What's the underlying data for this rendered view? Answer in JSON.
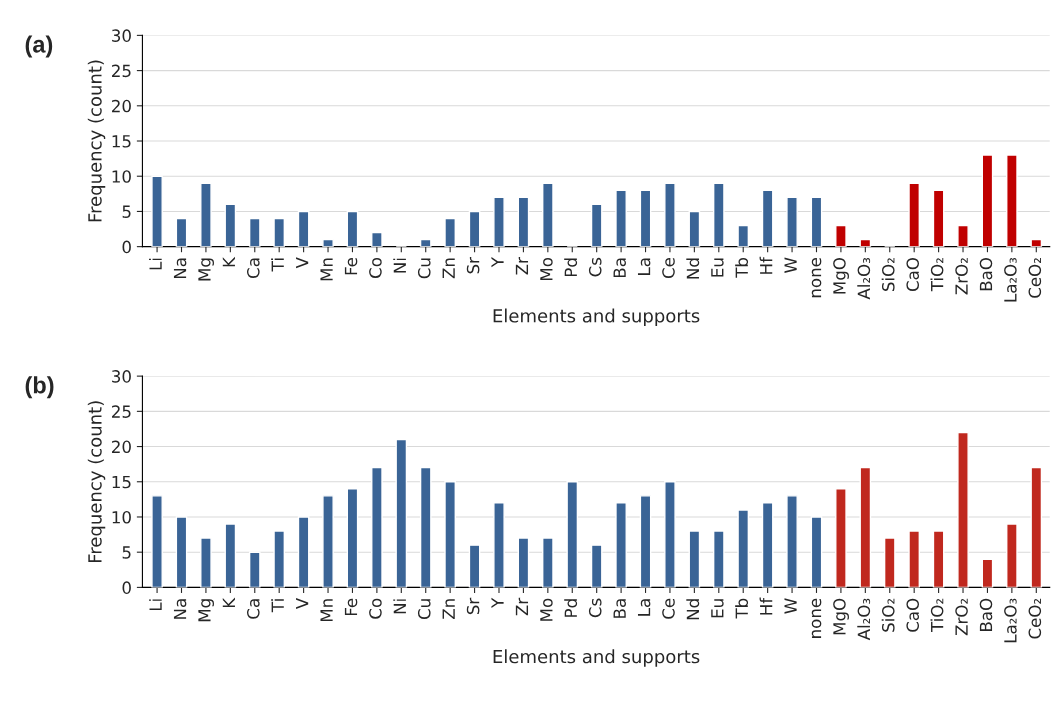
{
  "chart_data": [
    {
      "type": "bar",
      "annotations": [
        "(a)"
      ],
      "xlabel": "Elements and supports",
      "ylabel": "Frequency (count)",
      "ylim": [
        0,
        30
      ],
      "yticks": [
        0,
        5,
        10,
        15,
        20,
        25,
        30
      ],
      "grid": "y",
      "categories": [
        "Li",
        "Na",
        "Mg",
        "K",
        "Ca",
        "Ti",
        "V",
        "Mn",
        "Fe",
        "Co",
        "Ni",
        "Cu",
        "Zn",
        "Sr",
        "Y",
        "Zr",
        "Mo",
        "Pd",
        "Cs",
        "Ba",
        "La",
        "Ce",
        "Nd",
        "Eu",
        "Tb",
        "Hf",
        "W",
        "none",
        "MgO",
        "Al₂O₃",
        "SiO₂",
        "CaO",
        "TiO₂",
        "ZrO₂",
        "BaO",
        "La₂O₃",
        "CeO₂"
      ],
      "values": [
        10,
        4,
        9,
        6,
        4,
        4,
        5,
        1,
        5,
        2,
        0,
        1,
        4,
        5,
        7,
        7,
        9,
        0,
        6,
        8,
        8,
        9,
        5,
        9,
        3,
        8,
        7,
        7,
        3,
        1,
        0,
        9,
        8,
        3,
        13,
        13,
        1
      ],
      "colors": [
        "#3a6496",
        "#3a6496",
        "#3a6496",
        "#3a6496",
        "#3a6496",
        "#3a6496",
        "#3a6496",
        "#3a6496",
        "#3a6496",
        "#3a6496",
        null,
        "#3a6496",
        "#3a6496",
        "#3a6496",
        "#3a6496",
        "#3a6496",
        "#3a6496",
        null,
        "#3a6496",
        "#3a6496",
        "#3a6496",
        "#3a6496",
        "#3a6496",
        "#3a6496",
        "#3a6496",
        "#3a6496",
        "#3a6496",
        "#3a6496",
        "#c00000",
        "#c00000",
        null,
        "#c00000",
        "#c00000",
        "#c00000",
        "#c00000",
        "#c00000",
        "#c00000"
      ]
    },
    {
      "type": "bar",
      "annotations": [
        "(b)"
      ],
      "xlabel": "Elements and supports",
      "ylabel": "Frequency (count)",
      "ylim": [
        0,
        30
      ],
      "yticks": [
        0,
        5,
        10,
        15,
        20,
        25,
        30
      ],
      "grid": "y",
      "categories": [
        "Li",
        "Na",
        "Mg",
        "K",
        "Ca",
        "Ti",
        "V",
        "Mn",
        "Fe",
        "Co",
        "Ni",
        "Cu",
        "Zn",
        "Sr",
        "Y",
        "Zr",
        "Mo",
        "Pd",
        "Cs",
        "Ba",
        "La",
        "Ce",
        "Nd",
        "Eu",
        "Tb",
        "Hf",
        "W",
        "none",
        "MgO",
        "Al₂O₃",
        "SiO₂",
        "CaO",
        "TiO₂",
        "ZrO₂",
        "BaO",
        "La₂O₃",
        "CeO₂"
      ],
      "values": [
        13,
        10,
        7,
        9,
        5,
        8,
        10,
        13,
        14,
        17,
        21,
        17,
        15,
        6,
        12,
        7,
        7,
        15,
        6,
        12,
        13,
        15,
        8,
        8,
        11,
        12,
        13,
        10,
        14,
        17,
        7,
        8,
        8,
        22,
        4,
        9,
        17
      ],
      "colors": [
        "#3a6496",
        "#3a6496",
        "#3a6496",
        "#3a6496",
        "#3a6496",
        "#3a6496",
        "#3a6496",
        "#3a6496",
        "#3a6496",
        "#3a6496",
        "#3a6496",
        "#3a6496",
        "#3a6496",
        "#3a6496",
        "#3a6496",
        "#3a6496",
        "#3a6496",
        "#3a6496",
        "#3a6496",
        "#3a6496",
        "#3a6496",
        "#3a6496",
        "#3a6496",
        "#3a6496",
        "#3a6496",
        "#3a6496",
        "#3a6496",
        "#3a6496",
        "#c0281e",
        "#c0281e",
        "#c0281e",
        "#c0281e",
        "#c0281e",
        "#c0281e",
        "#c0281e",
        "#c0281e",
        "#c0281e"
      ]
    }
  ]
}
